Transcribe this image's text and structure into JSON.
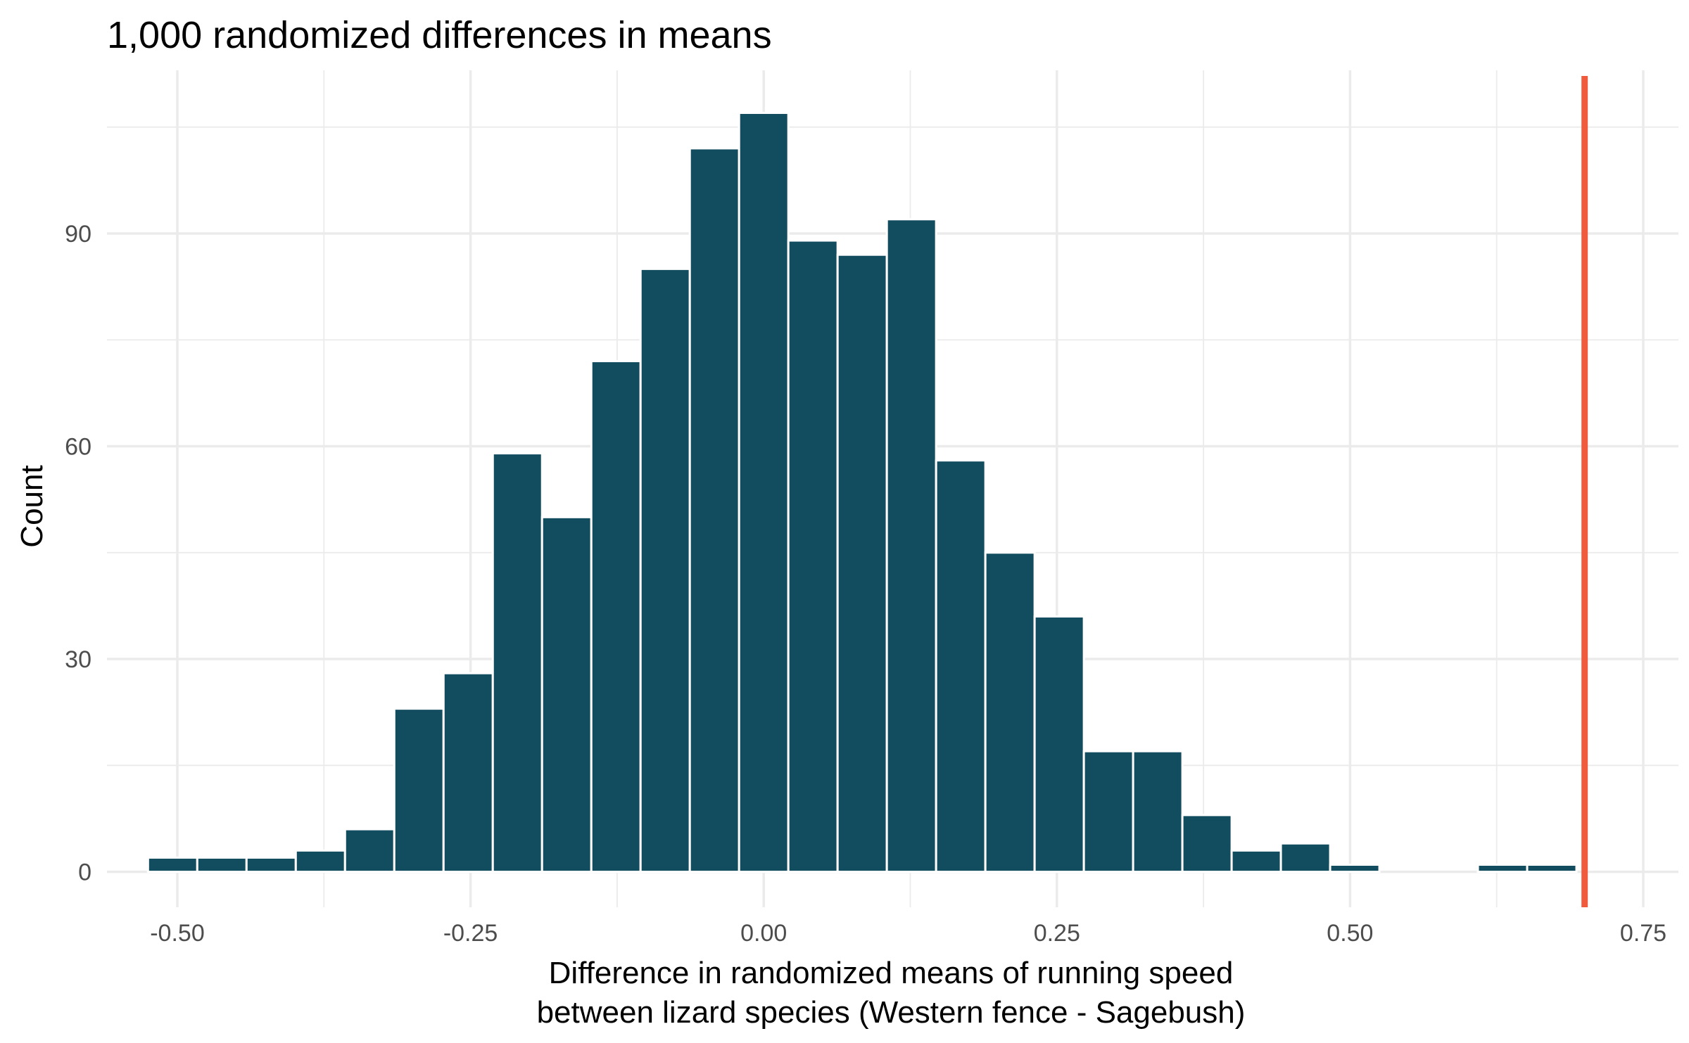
{
  "chart_data": {
    "type": "bar",
    "title": "1,000 randomized differences in means",
    "xlabel_lines": [
      "Difference in randomized means of running speed",
      "between lizard species (Western fence - Sagebush)"
    ],
    "ylabel": "Count",
    "xlim": [
      -0.56,
      0.78
    ],
    "ylim": [
      -5,
      113
    ],
    "x_ticks": [
      {
        "value": -0.5,
        "label": "-0.50"
      },
      {
        "value": -0.25,
        "label": "-0.25"
      },
      {
        "value": 0.0,
        "label": "0.00"
      },
      {
        "value": 0.25,
        "label": "0.25"
      },
      {
        "value": 0.5,
        "label": "0.50"
      },
      {
        "value": 0.75,
        "label": "0.75"
      }
    ],
    "y_ticks": [
      {
        "value": 0,
        "label": "0"
      },
      {
        "value": 30,
        "label": "30"
      },
      {
        "value": 60,
        "label": "60"
      },
      {
        "value": 90,
        "label": "90"
      }
    ],
    "grid": true,
    "bin_width": 0.042,
    "bin_centers": [
      -0.504,
      -0.462,
      -0.42,
      -0.378,
      -0.336,
      -0.294,
      -0.252,
      -0.21,
      -0.168,
      -0.126,
      -0.084,
      -0.042,
      0.0,
      0.042,
      0.084,
      0.126,
      0.168,
      0.21,
      0.252,
      0.294,
      0.336,
      0.378,
      0.42,
      0.462,
      0.504,
      0.546,
      0.588,
      0.63,
      0.672
    ],
    "counts": [
      2,
      2,
      2,
      3,
      6,
      23,
      28,
      59,
      50,
      72,
      85,
      102,
      107,
      89,
      87,
      92,
      58,
      45,
      36,
      17,
      17,
      8,
      3,
      4,
      1,
      0,
      0,
      1,
      1
    ],
    "bar_color": "#124c5f",
    "reference_line": {
      "x": 0.7,
      "color": "#f05a3d"
    }
  }
}
